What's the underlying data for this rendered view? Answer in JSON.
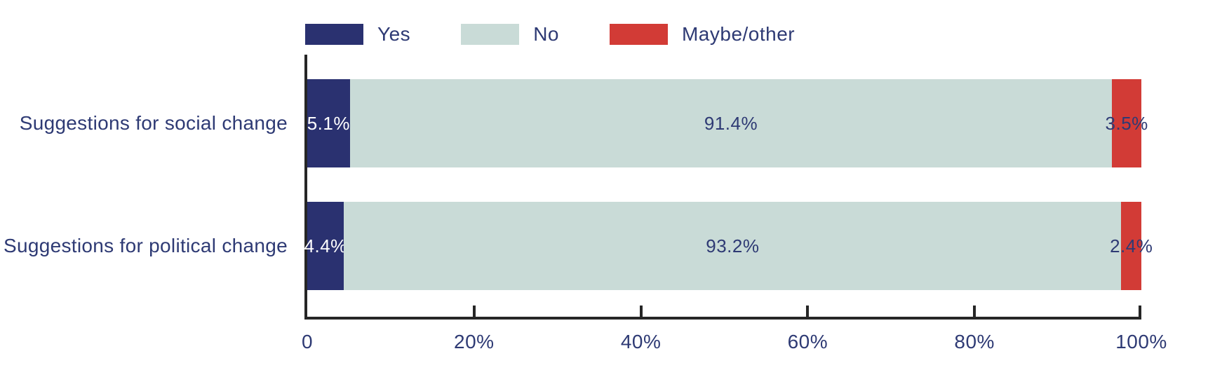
{
  "chart_data": {
    "type": "bar",
    "orientation": "horizontal",
    "stacked": true,
    "unit": "%",
    "categories": [
      "Suggestions for social change",
      "Suggestions for political change"
    ],
    "series": [
      {
        "name": "Yes",
        "color": "#2a3170",
        "label_color": "#ffffff",
        "values": [
          5.1,
          4.4
        ]
      },
      {
        "name": "No",
        "color": "#c9dbd7",
        "label_color": "#2e3a74",
        "values": [
          91.4,
          93.2
        ]
      },
      {
        "name": "Maybe/other",
        "color": "#d23b36",
        "label_color": "#2e3a74",
        "values": [
          3.5,
          2.4
        ]
      }
    ],
    "labels": [
      [
        "5.1%",
        "91.4%",
        "3.5%"
      ],
      [
        "4.4%",
        "93.2%",
        "2.4%"
      ]
    ],
    "x_ticks": [
      {
        "value": 0,
        "label": "0"
      },
      {
        "value": 20,
        "label": "20%"
      },
      {
        "value": 40,
        "label": "40%"
      },
      {
        "value": 60,
        "label": "60%"
      },
      {
        "value": 80,
        "label": "80%"
      },
      {
        "value": 100,
        "label": "100%"
      }
    ],
    "xlim": [
      0,
      100
    ],
    "legend_position": "top",
    "grid": false
  },
  "colors": {
    "axis": "#262626",
    "text": "#2e3a74",
    "background": "#ffffff"
  }
}
